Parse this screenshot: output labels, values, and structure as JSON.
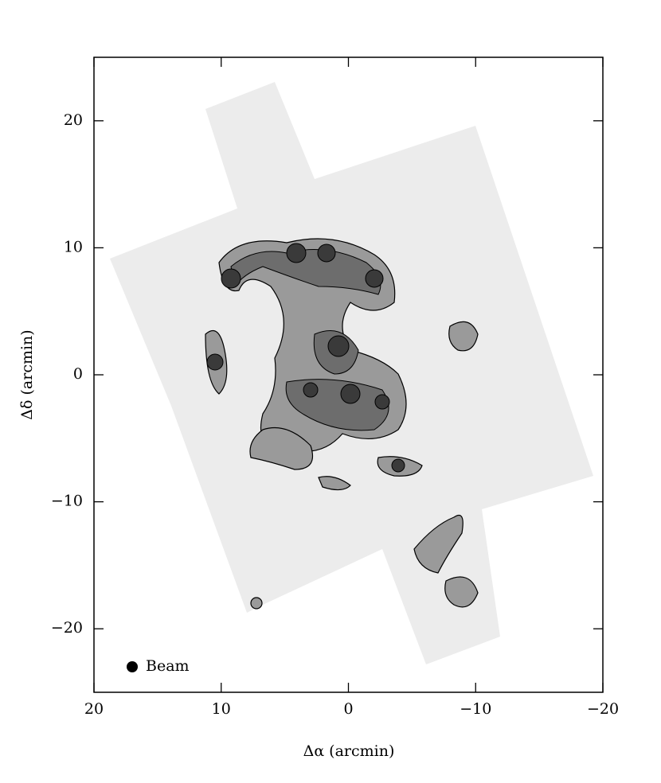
{
  "chart_data": {
    "type": "contour_map",
    "xlabel": "Δα (arcmin)",
    "ylabel": "Δδ (arcmin)",
    "annotation": "Beam",
    "xlim": [
      20,
      -20
    ],
    "ylim": [
      -25,
      25
    ],
    "xticks": [
      20,
      10,
      0,
      {
        "value": -10,
        "label": "−10"
      },
      {
        "value": -20,
        "label": "−20"
      }
    ],
    "yticks": [
      {
        "value": -20,
        "label": "−20"
      },
      {
        "value": -10,
        "label": "−10"
      },
      0,
      10,
      20
    ]
  }
}
